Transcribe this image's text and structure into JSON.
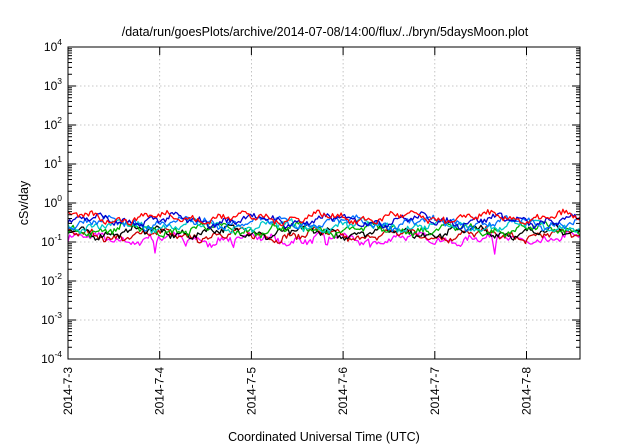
{
  "chart_data": {
    "type": "line",
    "title": "/data/run/goesPlots/archive/2014-07-08/14:00/flux/../bryn/5daysMoon.plot",
    "xlabel": "Coordinated Universal Time (UTC)",
    "ylabel": "cSv/day",
    "yscale": "log",
    "ylim": [
      0.0001,
      10000
    ],
    "xlim": [
      "2014-07-03",
      "2014-07-08 14:00"
    ],
    "y_ticks": [
      {
        "base": "10",
        "exp": "-4"
      },
      {
        "base": "10",
        "exp": "-3"
      },
      {
        "base": "10",
        "exp": "-2"
      },
      {
        "base": "10",
        "exp": "-1"
      },
      {
        "base": "10",
        "exp": "0"
      },
      {
        "base": "10",
        "exp": "1"
      },
      {
        "base": "10",
        "exp": "2"
      },
      {
        "base": "10",
        "exp": "3"
      },
      {
        "base": "10",
        "exp": "4"
      }
    ],
    "x_ticks": [
      "2014-7-3",
      "2014-7-4",
      "2014-7-5",
      "2014-7-6",
      "2014-7-7",
      "2014-7-8"
    ],
    "grid": true,
    "legend": "none",
    "series": [
      {
        "color": "#ff00ff",
        "base": 0.12,
        "dips": [
          [
            0.95,
            0.05
          ],
          [
            1.28,
            0.07
          ],
          [
            1.8,
            0.06
          ],
          [
            2.82,
            0.065
          ],
          [
            3.3,
            0.06
          ],
          [
            4.65,
            0.04
          ],
          [
            5.15,
            0.09
          ]
        ]
      },
      {
        "color": "#cc0000",
        "base": 0.15,
        "dips": []
      },
      {
        "color": "#000000",
        "base": 0.18,
        "dips": []
      },
      {
        "color": "#00b000",
        "base": 0.21,
        "dips": []
      },
      {
        "color": "#00c8c8",
        "base": 0.26,
        "dips": []
      },
      {
        "color": "#0070ff",
        "base": 0.31,
        "dips": []
      },
      {
        "color": "#0000cc",
        "base": 0.36,
        "dips": []
      },
      {
        "color": "#ff0000",
        "base": 0.42,
        "dips": []
      }
    ]
  }
}
